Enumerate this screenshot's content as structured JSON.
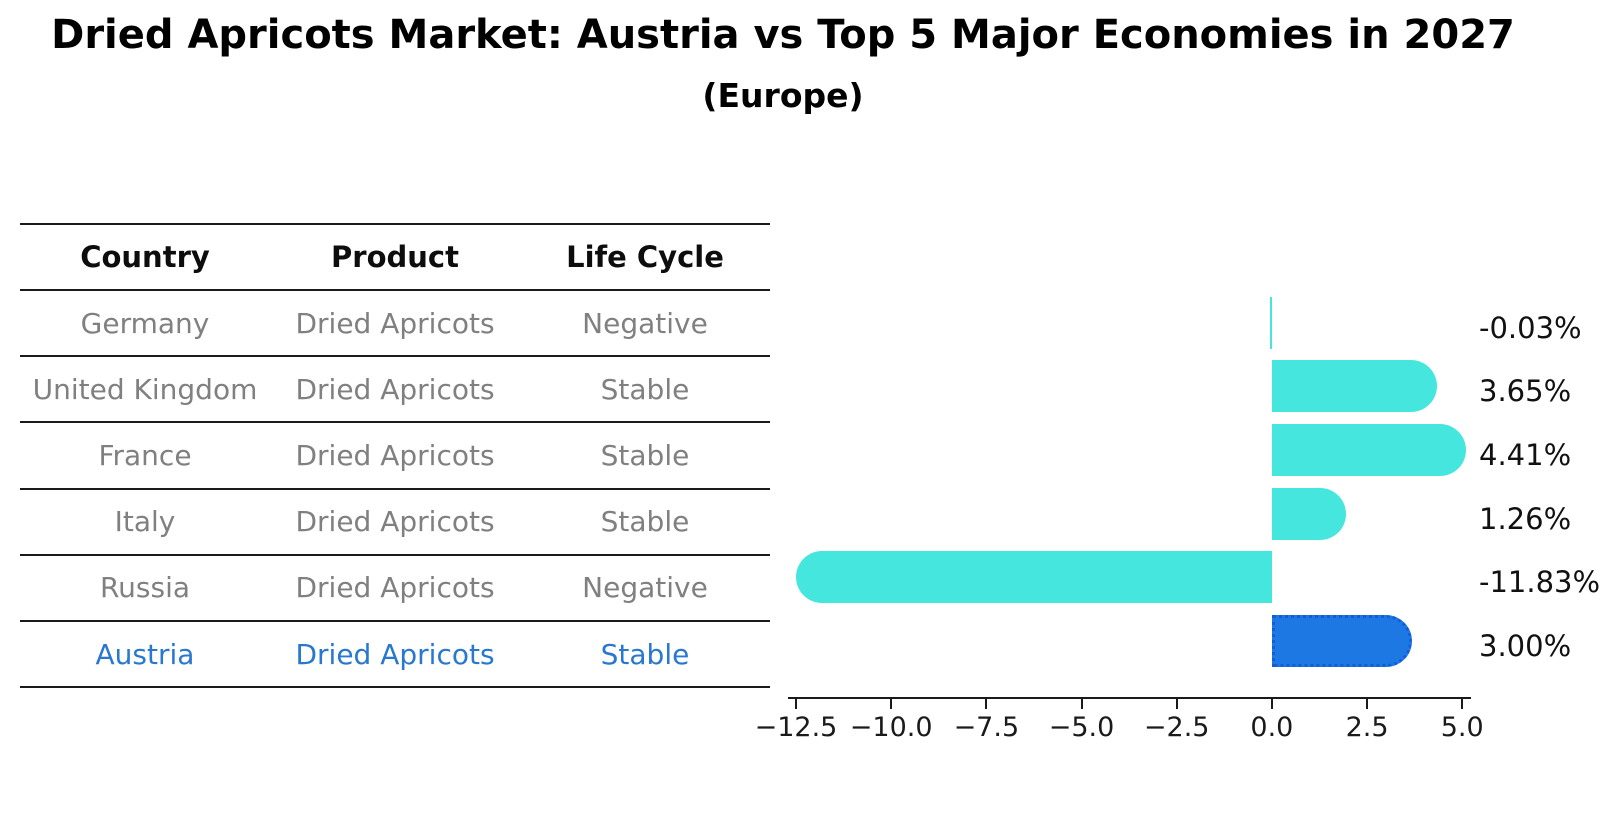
{
  "title": "Dried Apricots Market: Austria vs Top 5 Major Economies in 2027",
  "subtitle": "(Europe)",
  "table": {
    "headers": [
      "Country",
      "Product",
      "Life Cycle"
    ],
    "rows": [
      {
        "country": "Germany",
        "product": "Dried Apricots",
        "life_cycle": "Negative",
        "highlight": false
      },
      {
        "country": "United Kingdom",
        "product": "Dried Apricots",
        "life_cycle": "Stable",
        "highlight": false
      },
      {
        "country": "France",
        "product": "Dried Apricots",
        "life_cycle": "Stable",
        "highlight": false
      },
      {
        "country": "Italy",
        "product": "Dried Apricots",
        "life_cycle": "Stable",
        "highlight": false
      },
      {
        "country": "Russia",
        "product": "Dried Apricots",
        "life_cycle": "Negative",
        "highlight": false
      },
      {
        "country": "Austria",
        "product": "Dried Apricots",
        "life_cycle": "Stable",
        "highlight": true
      }
    ]
  },
  "chart_data": {
    "type": "bar",
    "orientation": "horizontal",
    "title": "Dried Apricots Market: Austria vs Top 5 Major Economies in 2027 (Europe)",
    "xlabel": "",
    "ylabel": "",
    "categories": [
      "Germany",
      "United Kingdom",
      "France",
      "Italy",
      "Russia",
      "Austria"
    ],
    "values": [
      -0.03,
      3.65,
      4.41,
      1.26,
      -11.83,
      3.0
    ],
    "value_labels": [
      "-0.03%",
      "3.65%",
      "4.41%",
      "1.26%",
      "-11.83%",
      "3.00%"
    ],
    "xlim": [
      -12.71,
      5.23
    ],
    "xticks": [
      -12.5,
      -10.0,
      -7.5,
      -5.0,
      -2.5,
      0.0,
      2.5,
      5.0
    ],
    "xtick_labels": [
      "−12.5",
      "−10.0",
      "−7.5",
      "−5.0",
      "−2.5",
      "0.0",
      "2.5",
      "5.0"
    ],
    "grid": false,
    "legend": false,
    "highlight_index": 5,
    "colors": {
      "bar_color": "#45e6de",
      "highlight_bar_color": "#1e78e3",
      "highlight_bar_border": "#0f5fd7",
      "highlight_border_style": "dotted",
      "highlight_text_color": "#2878d0",
      "table_text_color": "#808080",
      "axis_color": "#1a1a1a"
    }
  }
}
